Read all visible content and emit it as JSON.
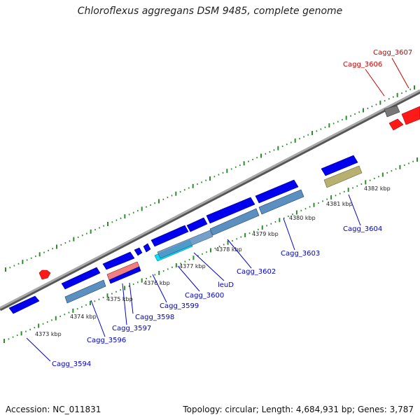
{
  "title": "Chloroflexus aggregans DSM 9485, complete genome",
  "footer": {
    "accession": "Accession: NC_011831",
    "summary": "Topology: circular; Length: 4,684,931 bp; Genes: 3,787"
  },
  "colors": {
    "backbone": "#8c8c8c",
    "tick": "#2e8b2e",
    "gene_forward": "#0000ee",
    "gene_other": "#ff1a1a",
    "cds_blue": "#5b8fbf",
    "cds_cyan": "#00e5ff",
    "cds_pink": "#f08080",
    "cds_olive": "#b8b070",
    "pseudo_gray": "#777777",
    "label_blue": "#0000cc",
    "label_red": "#cc0000"
  },
  "scale_labels": [
    "4373 kbp",
    "4374 kbp",
    "4375 kbp",
    "4376 kbp",
    "4377 kbp",
    "4378 kbp",
    "4379 kbp",
    "4380 kbp",
    "4381 kbp",
    "4382 kbp"
  ],
  "gene_labels": [
    {
      "text": "Cagg_3594",
      "color": "blue"
    },
    {
      "text": "Cagg_3596",
      "color": "blue"
    },
    {
      "text": "Cagg_3597",
      "color": "blue"
    },
    {
      "text": "Cagg_3598",
      "color": "blue"
    },
    {
      "text": "Cagg_3599",
      "color": "blue"
    },
    {
      "text": "Cagg_3600",
      "color": "blue"
    },
    {
      "text": "leuD",
      "color": "blue"
    },
    {
      "text": "Cagg_3602",
      "color": "blue"
    },
    {
      "text": "Cagg_3603",
      "color": "blue"
    },
    {
      "text": "Cagg_3604",
      "color": "blue"
    },
    {
      "text": "Cagg_3606",
      "color": "red"
    },
    {
      "text": "Cagg_3607",
      "color": "red"
    }
  ]
}
